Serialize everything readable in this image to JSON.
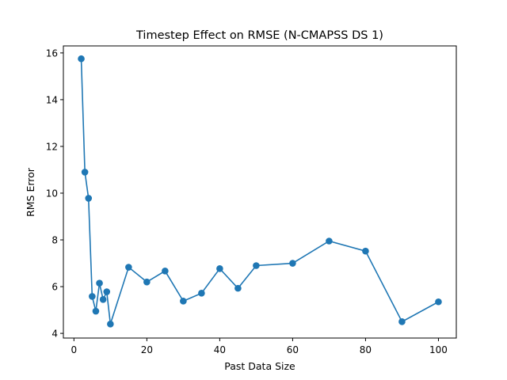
{
  "chart_data": {
    "type": "line",
    "title": "Timestep Effect on RMSE (N-CMAPSS DS 1)",
    "xlabel": "Past Data Size",
    "ylabel": "RMS Error",
    "xlim": [
      -2.9,
      104.9
    ],
    "ylim": [
      3.8,
      16.3
    ],
    "xticks": [
      0,
      20,
      40,
      60,
      80,
      100
    ],
    "yticks": [
      4,
      6,
      8,
      10,
      12,
      14,
      16
    ],
    "grid": false,
    "series_color": "#1f77b4",
    "marker": "circle",
    "x": [
      2,
      3,
      4,
      5,
      6,
      7,
      8,
      9,
      10,
      15,
      20,
      25,
      30,
      35,
      40,
      45,
      50,
      60,
      70,
      80,
      90,
      100
    ],
    "y": [
      15.75,
      10.9,
      9.78,
      5.58,
      4.95,
      6.15,
      5.45,
      5.78,
      4.4,
      6.83,
      6.2,
      6.67,
      5.38,
      5.72,
      6.77,
      5.93,
      6.9,
      7.0,
      7.95,
      7.52,
      4.5,
      5.35
    ]
  }
}
